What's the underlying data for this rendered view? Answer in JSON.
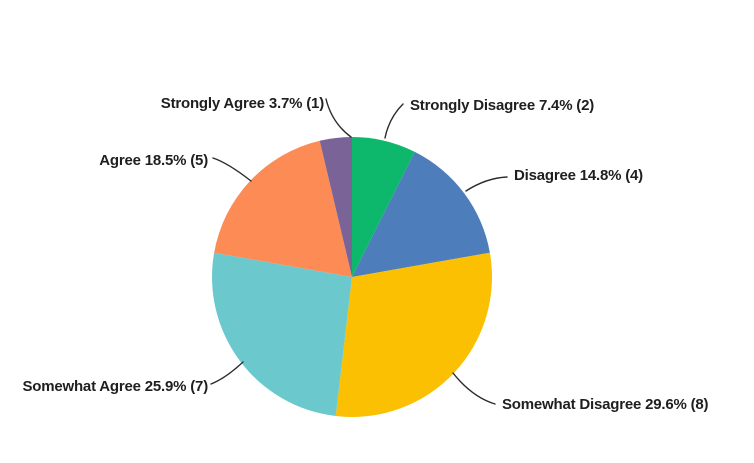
{
  "chart_data": {
    "type": "pie",
    "title": "",
    "background": "#ffffff",
    "leader_line_color": "#2b2b2b",
    "label_text_color": "#1f1f1f",
    "slices": [
      {
        "label": "Strongly Disagree",
        "percent": 7.4,
        "count": 2,
        "display": "Strongly Disagree 7.4% (2)",
        "color": "#0db86d"
      },
      {
        "label": "Disagree",
        "percent": 14.8,
        "count": 4,
        "display": "Disagree 14.8% (4)",
        "color": "#4d7dba"
      },
      {
        "label": "Somewhat Disagree",
        "percent": 29.6,
        "count": 8,
        "display": "Somewhat Disagree 29.6% (8)",
        "color": "#fac001"
      },
      {
        "label": "Somewhat Agree",
        "percent": 25.9,
        "count": 7,
        "display": "Somewhat Agree 25.9% (7)",
        "color": "#6bc9cd"
      },
      {
        "label": "Agree",
        "percent": 18.5,
        "count": 5,
        "display": "Agree 18.5% (5)",
        "color": "#fc8b55"
      },
      {
        "label": "Strongly Agree",
        "percent": 3.7,
        "count": 1,
        "display": "Strongly Agree 3.7% (1)",
        "color": "#7a6397"
      }
    ]
  }
}
